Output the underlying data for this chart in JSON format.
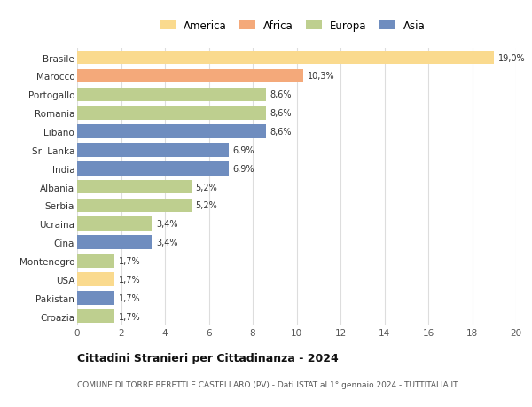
{
  "countries": [
    "Brasile",
    "Marocco",
    "Portogallo",
    "Romania",
    "Libano",
    "Sri Lanka",
    "India",
    "Albania",
    "Serbia",
    "Ucraina",
    "Cina",
    "Montenegro",
    "USA",
    "Pakistan",
    "Croazia"
  ],
  "values": [
    19.0,
    10.3,
    8.6,
    8.6,
    8.6,
    6.9,
    6.9,
    5.2,
    5.2,
    3.4,
    3.4,
    1.7,
    1.7,
    1.7,
    1.7
  ],
  "labels": [
    "19,0%",
    "10,3%",
    "8,6%",
    "8,6%",
    "8,6%",
    "6,9%",
    "6,9%",
    "5,2%",
    "5,2%",
    "3,4%",
    "3,4%",
    "1,7%",
    "1,7%",
    "1,7%",
    "1,7%"
  ],
  "colors": [
    "#FADA8E",
    "#F4A97A",
    "#BECF8F",
    "#BECF8F",
    "#6F8DBF",
    "#6F8DBF",
    "#6F8DBF",
    "#BECF8F",
    "#BECF8F",
    "#BECF8F",
    "#6F8DBF",
    "#BECF8F",
    "#FADA8E",
    "#6F8DBF",
    "#BECF8F"
  ],
  "legend_colors": {
    "America": "#FADA8E",
    "Africa": "#F4A97A",
    "Europa": "#BECF8F",
    "Asia": "#6F8DBF"
  },
  "title": "Cittadini Stranieri per Cittadinanza - 2024",
  "subtitle": "COMUNE DI TORRE BERETTI E CASTELLARO (PV) - Dati ISTAT al 1° gennaio 2024 - TUTTITALIA.IT",
  "xlim": [
    0,
    20
  ],
  "xticks": [
    0,
    2,
    4,
    6,
    8,
    10,
    12,
    14,
    16,
    18,
    20
  ],
  "background_color": "#FFFFFF",
  "grid_color": "#DDDDDD",
  "bar_height": 0.75
}
